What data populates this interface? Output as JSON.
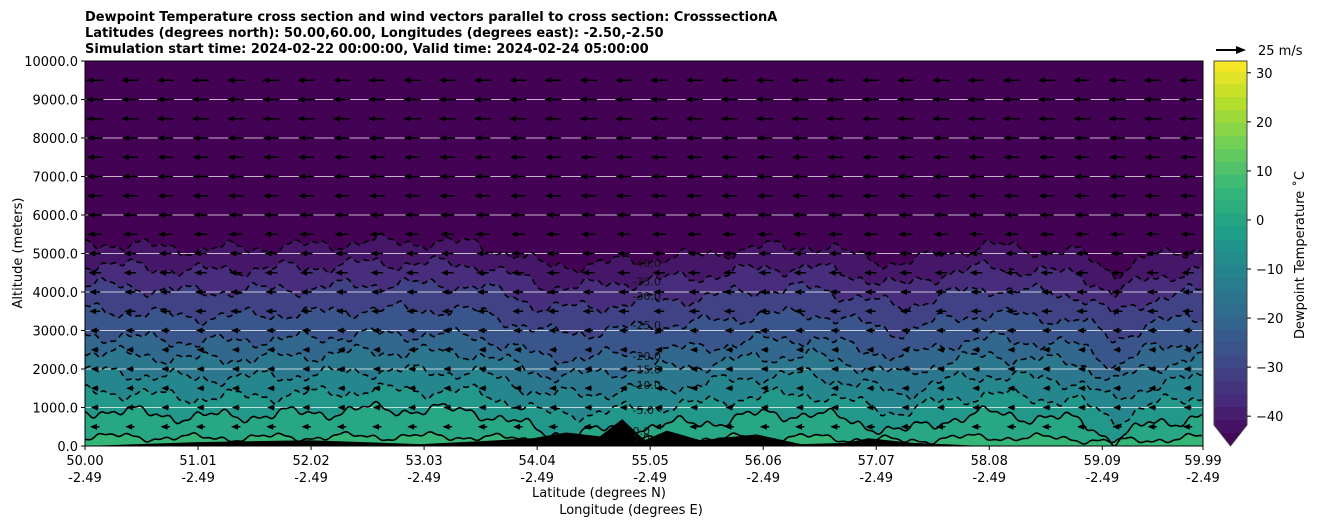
{
  "chart_data": {
    "type": "contour",
    "title": [
      "Dewpoint Temperature cross section and wind vectors parallel to cross section: CrosssectionA",
      "Latitudes (degrees north): 50.00,60.00, Longitudes (degrees east): -2.50,-2.50",
      "Simulation start time: 2024-02-22 00:00:00, Valid time: 2024-02-24 05:00:00"
    ],
    "xlabel": "Latitude (degrees N)",
    "xlabel2": "Longitude (degrees E)",
    "ylabel": "Altitude (meters)",
    "xlim": [
      50.0,
      59.99
    ],
    "ylim": [
      0,
      10000
    ],
    "x_ticks": [
      {
        "lat": "50.00",
        "lon": "-2.49",
        "v": 50.0
      },
      {
        "lat": "51.01",
        "lon": "-2.49",
        "v": 51.01
      },
      {
        "lat": "52.02",
        "lon": "-2.49",
        "v": 52.02
      },
      {
        "lat": "53.03",
        "lon": "-2.49",
        "v": 53.03
      },
      {
        "lat": "54.04",
        "lon": "-2.49",
        "v": 54.04
      },
      {
        "lat": "55.05",
        "lon": "-2.49",
        "v": 55.05
      },
      {
        "lat": "56.06",
        "lon": "-2.49",
        "v": 56.06
      },
      {
        "lat": "57.07",
        "lon": "-2.49",
        "v": 57.07
      },
      {
        "lat": "58.08",
        "lon": "-2.49",
        "v": 58.08
      },
      {
        "lat": "59.09",
        "lon": "-2.49",
        "v": 59.09
      },
      {
        "lat": "59.99",
        "lon": "-2.49",
        "v": 59.99
      }
    ],
    "y_ticks": [
      "0.0",
      "1000.0",
      "2000.0",
      "3000.0",
      "4000.0",
      "5000.0",
      "6000.0",
      "7000.0",
      "8000.0",
      "9000.0",
      "10000.0"
    ],
    "colorbar": {
      "label": "Dewpoint Temperature $^\\circ$C",
      "label_text": "Dewpoint Temperature ˚C",
      "range": [
        -42,
        32.5
      ],
      "ticks": [
        "-40",
        "-30",
        "-20",
        "-10",
        "0",
        "10",
        "20",
        "30"
      ],
      "extend": "min"
    },
    "wind_key": "25 m/s",
    "profile_lats": [
      50,
      50.5,
      51,
      51.5,
      52,
      52.5,
      53,
      53.5,
      53.8,
      54.1,
      54.5,
      55,
      55.5,
      56,
      56.5,
      57,
      57.3,
      57.7,
      58.1,
      58.5,
      58.9,
      59.2,
      59.5,
      59.99
    ],
    "profile_offsets": [
      0,
      -100,
      -200,
      -150,
      -100,
      0,
      0,
      -50,
      -300,
      -600,
      -600,
      -450,
      -350,
      -150,
      -100,
      -400,
      -600,
      -250,
      -100,
      -200,
      -300,
      -800,
      -400,
      -150
    ],
    "contour_levels": [
      {
        "level": -40,
        "base_alt": 5300,
        "label": "-40.0"
      },
      {
        "level": -35,
        "base_alt": 4750,
        "label": "-35.0"
      },
      {
        "level": -30,
        "base_alt": 4200,
        "label": "-30.0"
      },
      {
        "level": -25,
        "base_alt": 3550,
        "label": "-25.0"
      },
      {
        "level": -20,
        "base_alt": 2900,
        "label": "-20.0"
      },
      {
        "level": -15,
        "base_alt": 2450,
        "label": "-15.0"
      },
      {
        "level": -10,
        "base_alt": 1950,
        "label": "-10.0"
      },
      {
        "level": -5,
        "base_alt": 1450,
        "label": "-5.0"
      },
      {
        "level": 0,
        "base_alt": 950,
        "label": "0.0"
      },
      {
        "level": 5,
        "base_alt": 250,
        "label": "5.0"
      }
    ],
    "terrain": {
      "lats": [
        50,
        51,
        52,
        53,
        53.5,
        54,
        54.3,
        54.6,
        54.8,
        55.0,
        55.2,
        55.5,
        56,
        56.4,
        56.8,
        57.0,
        57.4,
        57.8,
        58.0
      ],
      "alts": [
        0,
        100,
        150,
        50,
        120,
        200,
        350,
        250,
        700,
        150,
        400,
        150,
        300,
        50,
        80,
        200,
        80,
        30,
        0
      ]
    },
    "wind": {
      "alts": [
        500,
        1000,
        1500,
        2000,
        2500,
        3000,
        3500,
        4000,
        4500,
        5000,
        5500,
        6000,
        6500,
        7000,
        7500,
        8000,
        8500,
        9000,
        9500
      ],
      "u_ms": [
        -4,
        -3,
        -3,
        -3,
        -3,
        -4,
        -5,
        -5,
        -6,
        -6,
        -7,
        -7,
        -8,
        -8,
        -8,
        -8,
        -9,
        -9,
        -9
      ],
      "lat_spacing": 0.315
    }
  }
}
